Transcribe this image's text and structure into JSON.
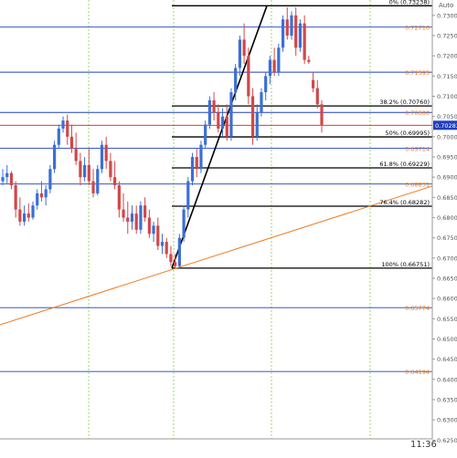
{
  "header": {
    "auto_label": "Auto"
  },
  "footer": {
    "time_label": "11:36"
  },
  "colors": {
    "background": "#ffffff",
    "bull_candle": "#3b6fd6",
    "bear_candle": "#d04848",
    "fib_line": "#000000",
    "blue_level": "#1f3fbf",
    "orange_level": "#ee7a1e",
    "red_level": "#d02020",
    "trendline_orange": "#ee7a1e",
    "vgrid": "#9bd86a",
    "price_tag_bg": "#1f3fbf",
    "axis_text": "#555555"
  },
  "chart_data": {
    "type": "candlestick",
    "y_axis": {
      "ylim": [
        0.6253,
        0.7338
      ],
      "tick_labels": [
        "0.73000",
        "0.72500",
        "0.72000",
        "0.71500",
        "0.71000",
        "0.70500",
        "0.70000",
        "0.69500",
        "0.69000",
        "0.68500",
        "0.68000",
        "0.67500",
        "0.67000",
        "0.66500",
        "0.66000",
        "0.65500",
        "0.65000",
        "0.64500",
        "0.64000",
        "0.63500",
        "0.63000",
        "0.62500"
      ]
    },
    "current_price": "0.70283",
    "fibonacci": {
      "levels": [
        {
          "label": "0% (0.73238)",
          "price": 0.73238
        },
        {
          "label": "38.2% (0.70760)",
          "price": 0.7076
        },
        {
          "label": "50% (0.69995)",
          "price": 0.69995
        },
        {
          "label": "61.8% (0.69229)",
          "price": 0.69229
        },
        {
          "label": "76.4% (0.68282)",
          "price": 0.68282
        },
        {
          "label": "100% (0.66751)",
          "price": 0.66751
        }
      ]
    },
    "horizontal_levels": [
      {
        "kind": "blue",
        "price": 0.7271,
        "label": "0.72710",
        "label_color": "orange"
      },
      {
        "kind": "blue",
        "price": 0.71595,
        "label": "0.71595",
        "label_color": "orange"
      },
      {
        "kind": "blue",
        "price": 0.706,
        "label": "0.70600",
        "label_color": "orange"
      },
      {
        "kind": "blue",
        "price": 0.69714,
        "label": "0.69714",
        "label_color": "orange"
      },
      {
        "kind": "blue",
        "price": 0.68831,
        "label": "0.68831",
        "label_color": "orange"
      },
      {
        "kind": "blue",
        "price": 0.65774,
        "label": "0.65774",
        "label_color": "orange"
      },
      {
        "kind": "blue",
        "price": 0.64194,
        "label": "0.64194",
        "label_color": "orange"
      },
      {
        "kind": "red",
        "price": 0.70283,
        "label": "",
        "label_color": "none"
      }
    ],
    "trendlines": [
      {
        "color": "black",
        "from_price": 0.66751,
        "to_price": 0.73238
      },
      {
        "color": "orange",
        "from_price": 0.6535,
        "to_price": 0.6878
      }
    ],
    "candles": [
      [
        0.689,
        0.692,
        0.688,
        0.69
      ],
      [
        0.69,
        0.693,
        0.6885,
        0.691
      ],
      [
        0.691,
        0.6915,
        0.687,
        0.688
      ],
      [
        0.688,
        0.689,
        0.68,
        0.682
      ],
      [
        0.682,
        0.685,
        0.678,
        0.679
      ],
      [
        0.679,
        0.683,
        0.678,
        0.681
      ],
      [
        0.681,
        0.6835,
        0.679,
        0.68
      ],
      [
        0.68,
        0.684,
        0.6795,
        0.683
      ],
      [
        0.683,
        0.687,
        0.682,
        0.686
      ],
      [
        0.686,
        0.689,
        0.684,
        0.685
      ],
      [
        0.685,
        0.688,
        0.683,
        0.687
      ],
      [
        0.687,
        0.693,
        0.686,
        0.692
      ],
      [
        0.692,
        0.699,
        0.691,
        0.698
      ],
      [
        0.698,
        0.703,
        0.697,
        0.702
      ],
      [
        0.702,
        0.705,
        0.701,
        0.704
      ],
      [
        0.704,
        0.7055,
        0.698,
        0.7
      ],
      [
        0.7,
        0.703,
        0.696,
        0.697
      ],
      [
        0.697,
        0.701,
        0.693,
        0.694
      ],
      [
        0.694,
        0.696,
        0.688,
        0.69
      ],
      [
        0.69,
        0.695,
        0.689,
        0.693
      ],
      [
        0.693,
        0.697,
        0.688,
        0.689
      ],
      [
        0.689,
        0.692,
        0.685,
        0.686
      ],
      [
        0.686,
        0.693,
        0.6855,
        0.692
      ],
      [
        0.692,
        0.699,
        0.691,
        0.698
      ],
      [
        0.698,
        0.7,
        0.692,
        0.694
      ],
      [
        0.694,
        0.696,
        0.689,
        0.69
      ],
      [
        0.69,
        0.694,
        0.687,
        0.688
      ],
      [
        0.688,
        0.689,
        0.68,
        0.682
      ],
      [
        0.682,
        0.686,
        0.679,
        0.68
      ],
      [
        0.68,
        0.684,
        0.676,
        0.679
      ],
      [
        0.679,
        0.683,
        0.677,
        0.681
      ],
      [
        0.681,
        0.683,
        0.676,
        0.677
      ],
      [
        0.677,
        0.684,
        0.676,
        0.683
      ],
      [
        0.683,
        0.685,
        0.679,
        0.68
      ],
      [
        0.68,
        0.682,
        0.675,
        0.676
      ],
      [
        0.676,
        0.679,
        0.674,
        0.678
      ],
      [
        0.678,
        0.68,
        0.672,
        0.673
      ],
      [
        0.673,
        0.676,
        0.671,
        0.674
      ],
      [
        0.674,
        0.675,
        0.67,
        0.671
      ],
      [
        0.671,
        0.673,
        0.668,
        0.669
      ],
      [
        0.669,
        0.671,
        0.6675,
        0.668
      ],
      [
        0.668,
        0.676,
        0.6675,
        0.675
      ],
      [
        0.675,
        0.683,
        0.674,
        0.682
      ],
      [
        0.682,
        0.69,
        0.68,
        0.689
      ],
      [
        0.689,
        0.696,
        0.688,
        0.695
      ],
      [
        0.695,
        0.697,
        0.69,
        0.692
      ],
      [
        0.692,
        0.699,
        0.691,
        0.698
      ],
      [
        0.698,
        0.704,
        0.697,
        0.703
      ],
      [
        0.703,
        0.71,
        0.702,
        0.709
      ],
      [
        0.709,
        0.711,
        0.704,
        0.706
      ],
      [
        0.706,
        0.708,
        0.701,
        0.702
      ],
      [
        0.702,
        0.707,
        0.7,
        0.705
      ],
      [
        0.705,
        0.708,
        0.699,
        0.7
      ],
      [
        0.7,
        0.712,
        0.699,
        0.711
      ],
      [
        0.711,
        0.718,
        0.709,
        0.717
      ],
      [
        0.717,
        0.725,
        0.715,
        0.724
      ],
      [
        0.724,
        0.728,
        0.718,
        0.72
      ],
      [
        0.72,
        0.722,
        0.708,
        0.71
      ],
      [
        0.71,
        0.712,
        0.698,
        0.7
      ],
      [
        0.7,
        0.708,
        0.699,
        0.706
      ],
      [
        0.706,
        0.712,
        0.705,
        0.711
      ],
      [
        0.711,
        0.716,
        0.709,
        0.715
      ],
      [
        0.715,
        0.72,
        0.713,
        0.719
      ],
      [
        0.719,
        0.722,
        0.715,
        0.716
      ],
      [
        0.716,
        0.723,
        0.715,
        0.722
      ],
      [
        0.722,
        0.73,
        0.721,
        0.729
      ],
      [
        0.729,
        0.732,
        0.724,
        0.725
      ],
      [
        0.725,
        0.731,
        0.724,
        0.73
      ],
      [
        0.73,
        0.732,
        0.72,
        0.722
      ],
      [
        0.722,
        0.729,
        0.721,
        0.728
      ],
      [
        0.728,
        0.73,
        0.718,
        0.719
      ],
      [
        0.719,
        0.72,
        0.718,
        0.7185
      ],
      [
        0.714,
        0.716,
        0.711,
        0.712
      ],
      [
        0.712,
        0.714,
        0.707,
        0.708
      ],
      [
        0.708,
        0.709,
        0.701,
        0.7028
      ]
    ]
  }
}
